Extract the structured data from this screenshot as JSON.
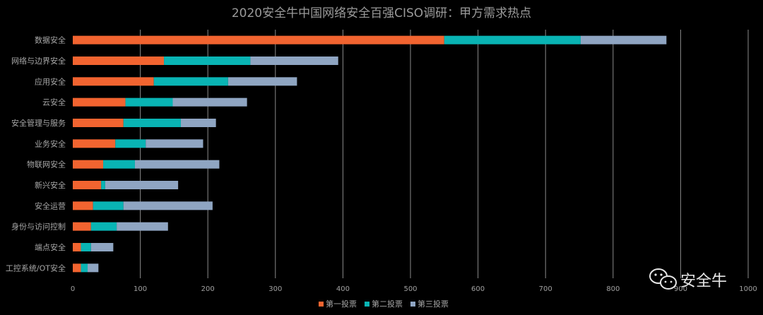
{
  "chart_data": {
    "type": "bar",
    "orientation": "horizontal",
    "stacked": true,
    "title": "2020安全牛中国网络安全百强CISO调研：甲方需求热点",
    "categories": [
      "数据安全",
      "网络与边界安全",
      "应用安全",
      "云安全",
      "安全管理与服务",
      "业务安全",
      "物联网安全",
      "新兴安全",
      "安全运营",
      "身份与访问控制",
      "端点安全",
      "工控系统/OT安全"
    ],
    "series": [
      {
        "name": "第一投票",
        "color": "#f26430",
        "values": [
          550,
          135,
          120,
          78,
          75,
          63,
          45,
          42,
          30,
          27,
          12,
          12
        ]
      },
      {
        "name": "第二投票",
        "color": "#09b4b4",
        "values": [
          202,
          128,
          110,
          70,
          85,
          45,
          47,
          6,
          45,
          38,
          15,
          10
        ]
      },
      {
        "name": "第三投票",
        "color": "#8fa5c2",
        "values": [
          127,
          130,
          102,
          110,
          52,
          85,
          125,
          108,
          132,
          76,
          33,
          16
        ]
      }
    ],
    "xlim": [
      0,
      1000
    ],
    "xticks": [
      0,
      100,
      200,
      300,
      400,
      500,
      600,
      700,
      800,
      900,
      1000
    ],
    "grid": true,
    "legend": "bottom"
  },
  "watermark": {
    "text": "安全牛",
    "icon": "wechat-icon"
  }
}
